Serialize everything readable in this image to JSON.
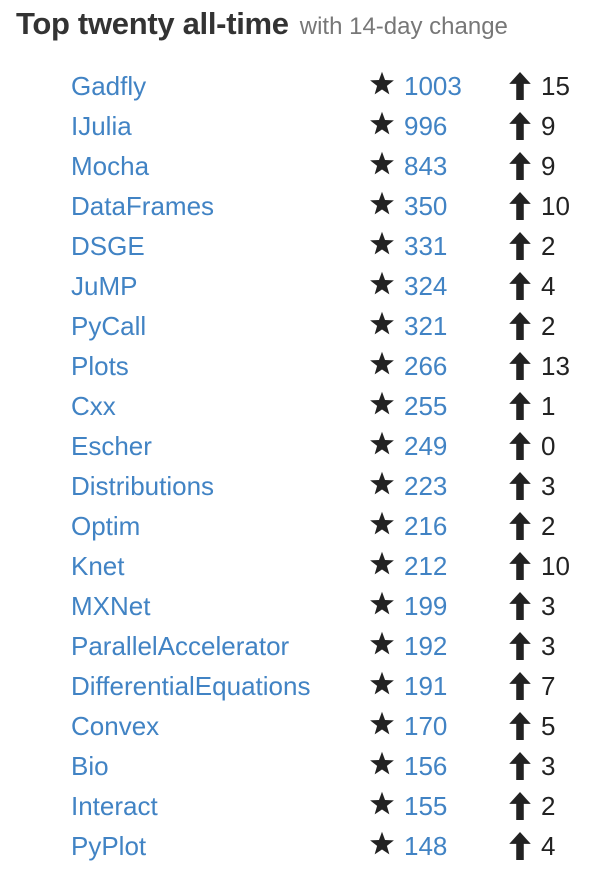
{
  "header": {
    "title": "Top twenty all-time",
    "subtitle": "with 14-day change"
  },
  "colors": {
    "link": "#4183c4",
    "title": "#333333",
    "subtitle": "#777777",
    "icon": "#222222"
  },
  "icons": {
    "star": "star-icon",
    "arrow": "arrow-up-icon"
  },
  "packages": [
    {
      "name": "Gadfly",
      "stars": "1003",
      "change": "15"
    },
    {
      "name": "IJulia",
      "stars": "996",
      "change": "9"
    },
    {
      "name": "Mocha",
      "stars": "843",
      "change": "9"
    },
    {
      "name": "DataFrames",
      "stars": "350",
      "change": "10"
    },
    {
      "name": "DSGE",
      "stars": "331",
      "change": "2"
    },
    {
      "name": "JuMP",
      "stars": "324",
      "change": "4"
    },
    {
      "name": "PyCall",
      "stars": "321",
      "change": "2"
    },
    {
      "name": "Plots",
      "stars": "266",
      "change": "13"
    },
    {
      "name": "Cxx",
      "stars": "255",
      "change": "1"
    },
    {
      "name": "Escher",
      "stars": "249",
      "change": "0"
    },
    {
      "name": "Distributions",
      "stars": "223",
      "change": "3"
    },
    {
      "name": "Optim",
      "stars": "216",
      "change": "2"
    },
    {
      "name": "Knet",
      "stars": "212",
      "change": "10"
    },
    {
      "name": "MXNet",
      "stars": "199",
      "change": "3"
    },
    {
      "name": "ParallelAccelerator",
      "stars": "192",
      "change": "3"
    },
    {
      "name": "DifferentialEquations",
      "stars": "191",
      "change": "7"
    },
    {
      "name": "Convex",
      "stars": "170",
      "change": "5"
    },
    {
      "name": "Bio",
      "stars": "156",
      "change": "3"
    },
    {
      "name": "Interact",
      "stars": "155",
      "change": "2"
    },
    {
      "name": "PyPlot",
      "stars": "148",
      "change": "4"
    }
  ]
}
